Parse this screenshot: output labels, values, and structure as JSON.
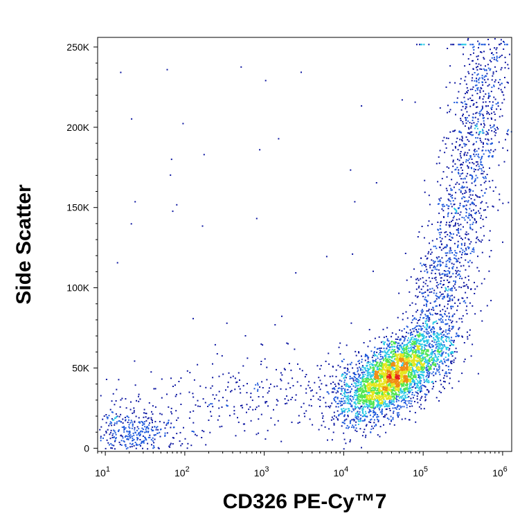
{
  "chart_data": {
    "type": "scatter",
    "style": "flow-cytometry density dot plot",
    "xlabel": "CD326 PE-Cy™7",
    "ylabel": "Side Scatter",
    "xscale": "log",
    "xlim": [
      8,
      1300000
    ],
    "ylim": [
      -2000,
      256000
    ],
    "xticks": [
      {
        "value": 10,
        "base": "10",
        "exp": "1"
      },
      {
        "value": 100,
        "base": "10",
        "exp": "2"
      },
      {
        "value": 1000,
        "base": "10",
        "exp": "3"
      },
      {
        "value": 10000,
        "base": "10",
        "exp": "4"
      },
      {
        "value": 100000,
        "base": "10",
        "exp": "5"
      },
      {
        "value": 1000000,
        "base": "10",
        "exp": "6"
      }
    ],
    "yticks": [
      {
        "value": 0,
        "label": "0"
      },
      {
        "value": 50000,
        "label": "50K"
      },
      {
        "value": 100000,
        "label": "100K"
      },
      {
        "value": 150000,
        "label": "150K"
      },
      {
        "value": 200000,
        "label": "200K"
      },
      {
        "value": 250000,
        "label": "250K"
      }
    ],
    "density_colors": [
      "#0a14a0",
      "#1e5adc",
      "#28c8e6",
      "#50e650",
      "#e6e61e",
      "#f08c14",
      "#e61e1e"
    ],
    "populations": [
      {
        "description": "main positive population",
        "x_center": 40000,
        "y_center": 45000,
        "y_spread": 15000,
        "log_spread": 0.35
      },
      {
        "description": "ascending high side-scatter tail",
        "x_range": [
          100000,
          900000
        ],
        "y_range": [
          50000,
          250000
        ]
      },
      {
        "description": "negative low side-scatter population",
        "x_center": 20,
        "y_center": 12000,
        "y_spread": 8000,
        "log_spread": 0.35
      },
      {
        "description": "sparse events between populations",
        "x_range": [
          10,
          10000
        ],
        "y_range": [
          0,
          60000
        ]
      }
    ]
  }
}
